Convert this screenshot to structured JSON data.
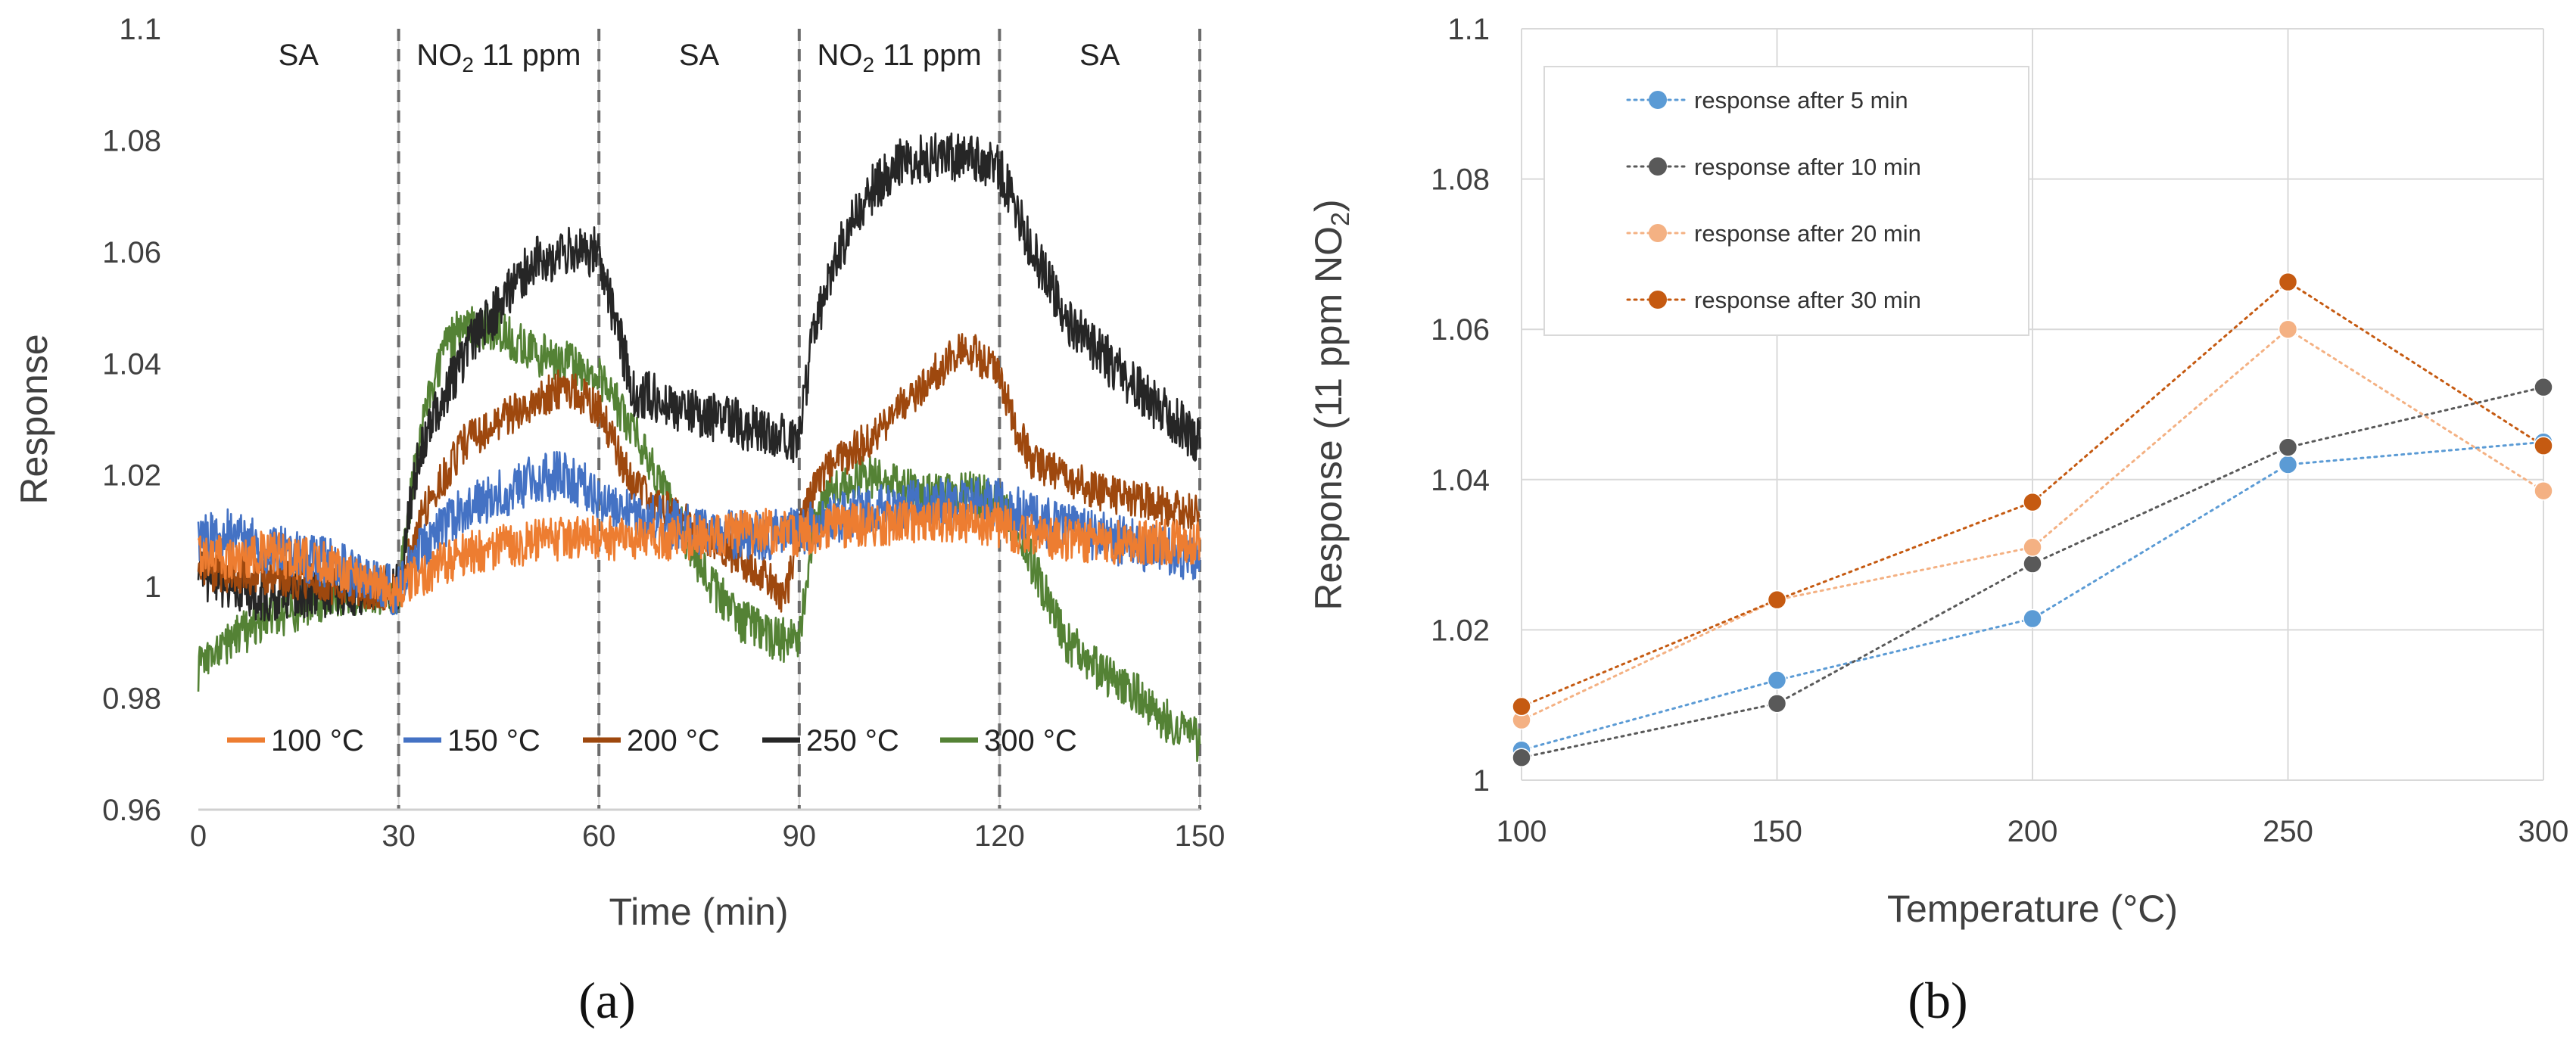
{
  "panel_labels": {
    "a": "(a)",
    "b": "(b)"
  },
  "chart_data": [
    {
      "type": "line",
      "panel": "(a)",
      "xlabel": "Time (min)",
      "ylabel": "Response",
      "xlim": [
        0,
        150
      ],
      "ylim": [
        0.96,
        1.1
      ],
      "xticks": [
        0,
        30,
        60,
        90,
        120,
        150
      ],
      "yticks": [
        0.96,
        0.98,
        1,
        1.02,
        1.04,
        1.06,
        1.08,
        1.1
      ],
      "ytick_labels": [
        "0.96",
        "0.98",
        "1",
        "1.02",
        "1.04",
        "1.06",
        "1.08",
        "1.1"
      ],
      "grid": "vertical",
      "regions": [
        {
          "label": "SA",
          "subscript": "",
          "suffix": "",
          "x0": 0,
          "x1": 30
        },
        {
          "label": "NO",
          "subscript": "2",
          "suffix": " 11 ppm",
          "x0": 30,
          "x1": 60
        },
        {
          "label": "SA",
          "subscript": "",
          "suffix": "",
          "x0": 60,
          "x1": 90
        },
        {
          "label": "NO",
          "subscript": "2",
          "suffix": " 11 ppm",
          "x0": 90,
          "x1": 120
        },
        {
          "label": "SA",
          "subscript": "",
          "suffix": "",
          "x0": 120,
          "x1": 150
        }
      ],
      "region_boundaries": [
        30,
        60,
        90,
        120,
        150
      ],
      "legend_position": "bottom-left inside",
      "series": [
        {
          "name": "100 °C",
          "color": "#ED7D31",
          "noise": 0.004,
          "x": [
            0,
            5,
            10,
            20,
            30,
            33,
            40,
            50,
            60,
            65,
            75,
            85,
            90,
            95,
            100,
            110,
            120,
            125,
            135,
            150
          ],
          "y": [
            1.006,
            1.005,
            1.006,
            1.004,
            0.999,
            1.002,
            1.006,
            1.008,
            1.009,
            1.008,
            1.009,
            1.01,
            1.009,
            1.011,
            1.011,
            1.012,
            1.011,
            1.009,
            1.008,
            1.008
          ]
        },
        {
          "name": "150 °C",
          "color": "#4472C4",
          "noise": 0.0045,
          "x": [
            0,
            5,
            10,
            20,
            30,
            33,
            40,
            50,
            55,
            60,
            65,
            75,
            85,
            90,
            95,
            100,
            110,
            120,
            125,
            135,
            150
          ],
          "y": [
            1.008,
            1.01,
            1.007,
            1.004,
            0.999,
            1.006,
            1.014,
            1.019,
            1.02,
            1.016,
            1.013,
            1.01,
            1.009,
            1.01,
            1.012,
            1.014,
            1.015,
            1.015,
            1.012,
            1.009,
            1.005
          ]
        },
        {
          "name": "200 °C",
          "color": "#9E480E",
          "noise": 0.0035,
          "x": [
            0,
            5,
            10,
            20,
            30,
            33,
            40,
            50,
            55,
            60,
            65,
            75,
            85,
            88,
            90,
            93,
            100,
            110,
            115,
            120,
            122,
            125,
            135,
            150
          ],
          "y": [
            1.003,
            1.002,
            1.002,
            1.0,
            0.999,
            1.012,
            1.026,
            1.033,
            1.036,
            1.032,
            1.018,
            1.01,
            1.002,
            0.998,
            1.01,
            1.02,
            1.026,
            1.038,
            1.043,
            1.038,
            1.03,
            1.022,
            1.017,
            1.013
          ]
        },
        {
          "name": "250 °C",
          "color": "#262626",
          "noise": 0.0045,
          "x": [
            0,
            5,
            10,
            20,
            30,
            33,
            40,
            45,
            50,
            55,
            60,
            62,
            65,
            75,
            85,
            88,
            90,
            92,
            95,
            100,
            105,
            110,
            115,
            120,
            125,
            130,
            140,
            150
          ],
          "y": [
            1.002,
            1.0,
            0.998,
            0.999,
            1.0,
            1.024,
            1.042,
            1.05,
            1.058,
            1.06,
            1.06,
            1.05,
            1.035,
            1.031,
            1.028,
            1.027,
            1.026,
            1.045,
            1.058,
            1.07,
            1.076,
            1.077,
            1.077,
            1.075,
            1.06,
            1.048,
            1.036,
            1.026
          ]
        },
        {
          "name": "300 °C",
          "color": "#548235",
          "noise": 0.004,
          "x": [
            0,
            3,
            10,
            20,
            30,
            33,
            37,
            40,
            45,
            50,
            55,
            60,
            65,
            70,
            75,
            80,
            85,
            90,
            92,
            95,
            100,
            110,
            115,
            120,
            125,
            130,
            135,
            140,
            145,
            150
          ],
          "y": [
            0.985,
            0.989,
            0.994,
            0.998,
            0.999,
            1.027,
            1.043,
            1.047,
            1.046,
            1.042,
            1.04,
            1.038,
            1.028,
            1.016,
            1.004,
            0.995,
            0.991,
            0.99,
            1.01,
            1.018,
            1.02,
            1.016,
            1.017,
            1.015,
            1.004,
            0.99,
            0.985,
            0.981,
            0.976,
            0.972
          ]
        }
      ]
    },
    {
      "type": "line",
      "panel": "(b)",
      "xlabel": "Temperature (°C)",
      "ylabel": "Response (11 ppm NO",
      "ylabel_subscript": "2",
      "ylabel_suffix": ")",
      "xlim": [
        100,
        300
      ],
      "ylim": [
        1,
        1.1
      ],
      "xticks": [
        100,
        150,
        200,
        250,
        300
      ],
      "yticks": [
        1,
        1.02,
        1.04,
        1.06,
        1.08,
        1.1
      ],
      "ytick_labels": [
        "1",
        "1.02",
        "1.04",
        "1.06",
        "1.08",
        "1.1"
      ],
      "grid": "both",
      "legend_position": "top-left inside",
      "series": [
        {
          "name": "response after 5 min",
          "color": "#5B9BD5",
          "x": [
            100,
            150,
            200,
            250,
            300
          ],
          "y": [
            1.004,
            1.0133,
            1.0215,
            1.042,
            1.045
          ]
        },
        {
          "name": "response after 10 min",
          "color": "#595959",
          "x": [
            100,
            150,
            200,
            250,
            300
          ],
          "y": [
            1.003,
            1.0102,
            1.0288,
            1.0443,
            1.0523
          ]
        },
        {
          "name": "response after 20 min",
          "color": "#F4B183",
          "x": [
            100,
            150,
            200,
            250,
            300
          ],
          "y": [
            1.008,
            1.024,
            1.031,
            1.06,
            1.0385
          ]
        },
        {
          "name": "response after 30 min",
          "color": "#C55A11",
          "x": [
            100,
            150,
            200,
            250,
            300
          ],
          "y": [
            1.0098,
            1.024,
            1.037,
            1.0663,
            1.0445
          ]
        }
      ]
    }
  ]
}
